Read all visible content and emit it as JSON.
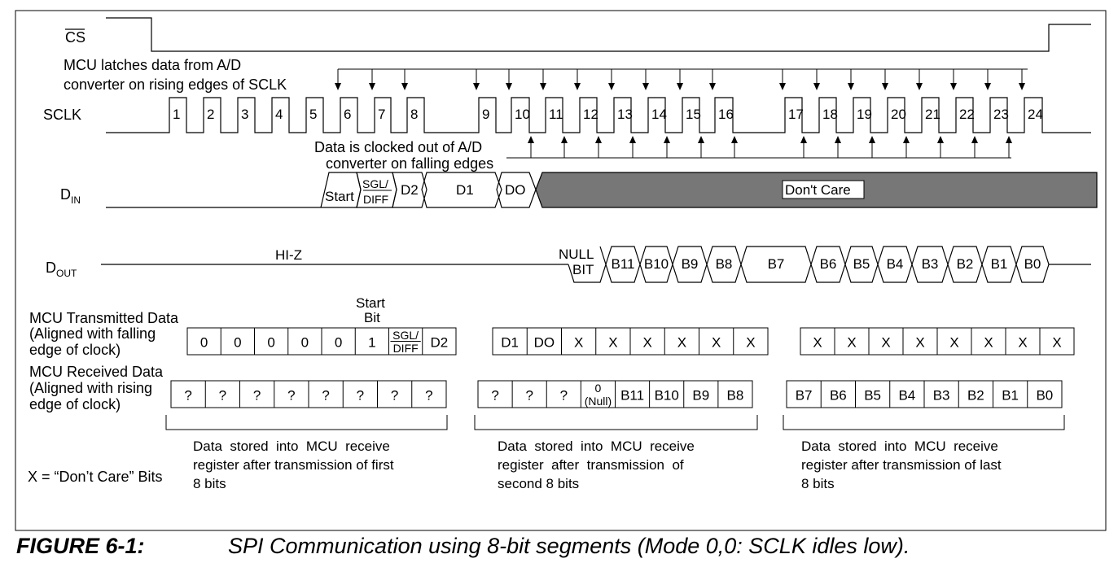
{
  "signals": {
    "cs": "CS",
    "sclk": "SCLK",
    "din": {
      "main": "D",
      "sub": "IN"
    },
    "dout": {
      "main": "D",
      "sub": "OUT"
    }
  },
  "annotations": {
    "rising": [
      "MCU latches data from A/D",
      "converter on rising edges of SCLK"
    ],
    "falling": [
      "Data is clocked out of A/D",
      "converter on falling edges"
    ],
    "hiz": "HI-Z",
    "dont_care": "Don't Care",
    "start_bit": [
      "Start",
      "Bit"
    ]
  },
  "clock_numbers": [
    "1",
    "2",
    "3",
    "4",
    "5",
    "6",
    "7",
    "8",
    "9",
    "10",
    "11",
    "12",
    "13",
    "14",
    "15",
    "16",
    "17",
    "18",
    "19",
    "20",
    "21",
    "22",
    "23",
    "24"
  ],
  "din_fields": {
    "start": "Start",
    "sgl": "SGL/",
    "diff": "DIFF",
    "d2": "D2",
    "d1": "D1",
    "d0": "DO"
  },
  "dout_fields": {
    "null1": "NULL",
    "null2": "BIT",
    "bits": [
      "B11",
      "B10",
      "B9",
      "B8",
      "B7",
      "B6",
      "B5",
      "B4",
      "B3",
      "B2",
      "B1",
      "B0"
    ]
  },
  "tables": {
    "tx_label": [
      "MCU Transmitted Data",
      "(Aligned with falling",
      "edge of clock)"
    ],
    "rx_label": [
      "MCU Received Data",
      "(Aligned with rising",
      "edge of clock)"
    ],
    "tx1": [
      "0",
      "0",
      "0",
      "0",
      "0",
      "1",
      "SGL/|DIFF",
      "D2"
    ],
    "tx2": [
      "D1",
      "DO",
      "X",
      "X",
      "X",
      "X",
      "X",
      "X"
    ],
    "tx3": [
      "X",
      "X",
      "X",
      "X",
      "X",
      "X",
      "X",
      "X"
    ],
    "rx1": [
      "?",
      "?",
      "?",
      "?",
      "?",
      "?",
      "?",
      "?"
    ],
    "rx2": [
      "?",
      "?",
      "?",
      "0|(Null)",
      "B11",
      "B10",
      "B9",
      "B8"
    ],
    "rx3": [
      "B7",
      "B6",
      "B5",
      "B4",
      "B3",
      "B2",
      "B1",
      "B0"
    ],
    "legend": "X = “Don’t Care” Bits",
    "notes": [
      [
        "Data  stored  into  MCU  receive",
        "register after transmission of first",
        "8 bits"
      ],
      [
        "Data  stored  into  MCU  receive",
        "register  after  transmission  of",
        "second 8 bits"
      ],
      [
        "Data  stored  into  MCU  receive",
        "register after transmission of last",
        "8 bits"
      ]
    ]
  },
  "caption": {
    "number": "FIGURE 6-1:",
    "text": "SPI Communication using 8-bit segments (Mode 0,0: SCLK idles low)."
  }
}
